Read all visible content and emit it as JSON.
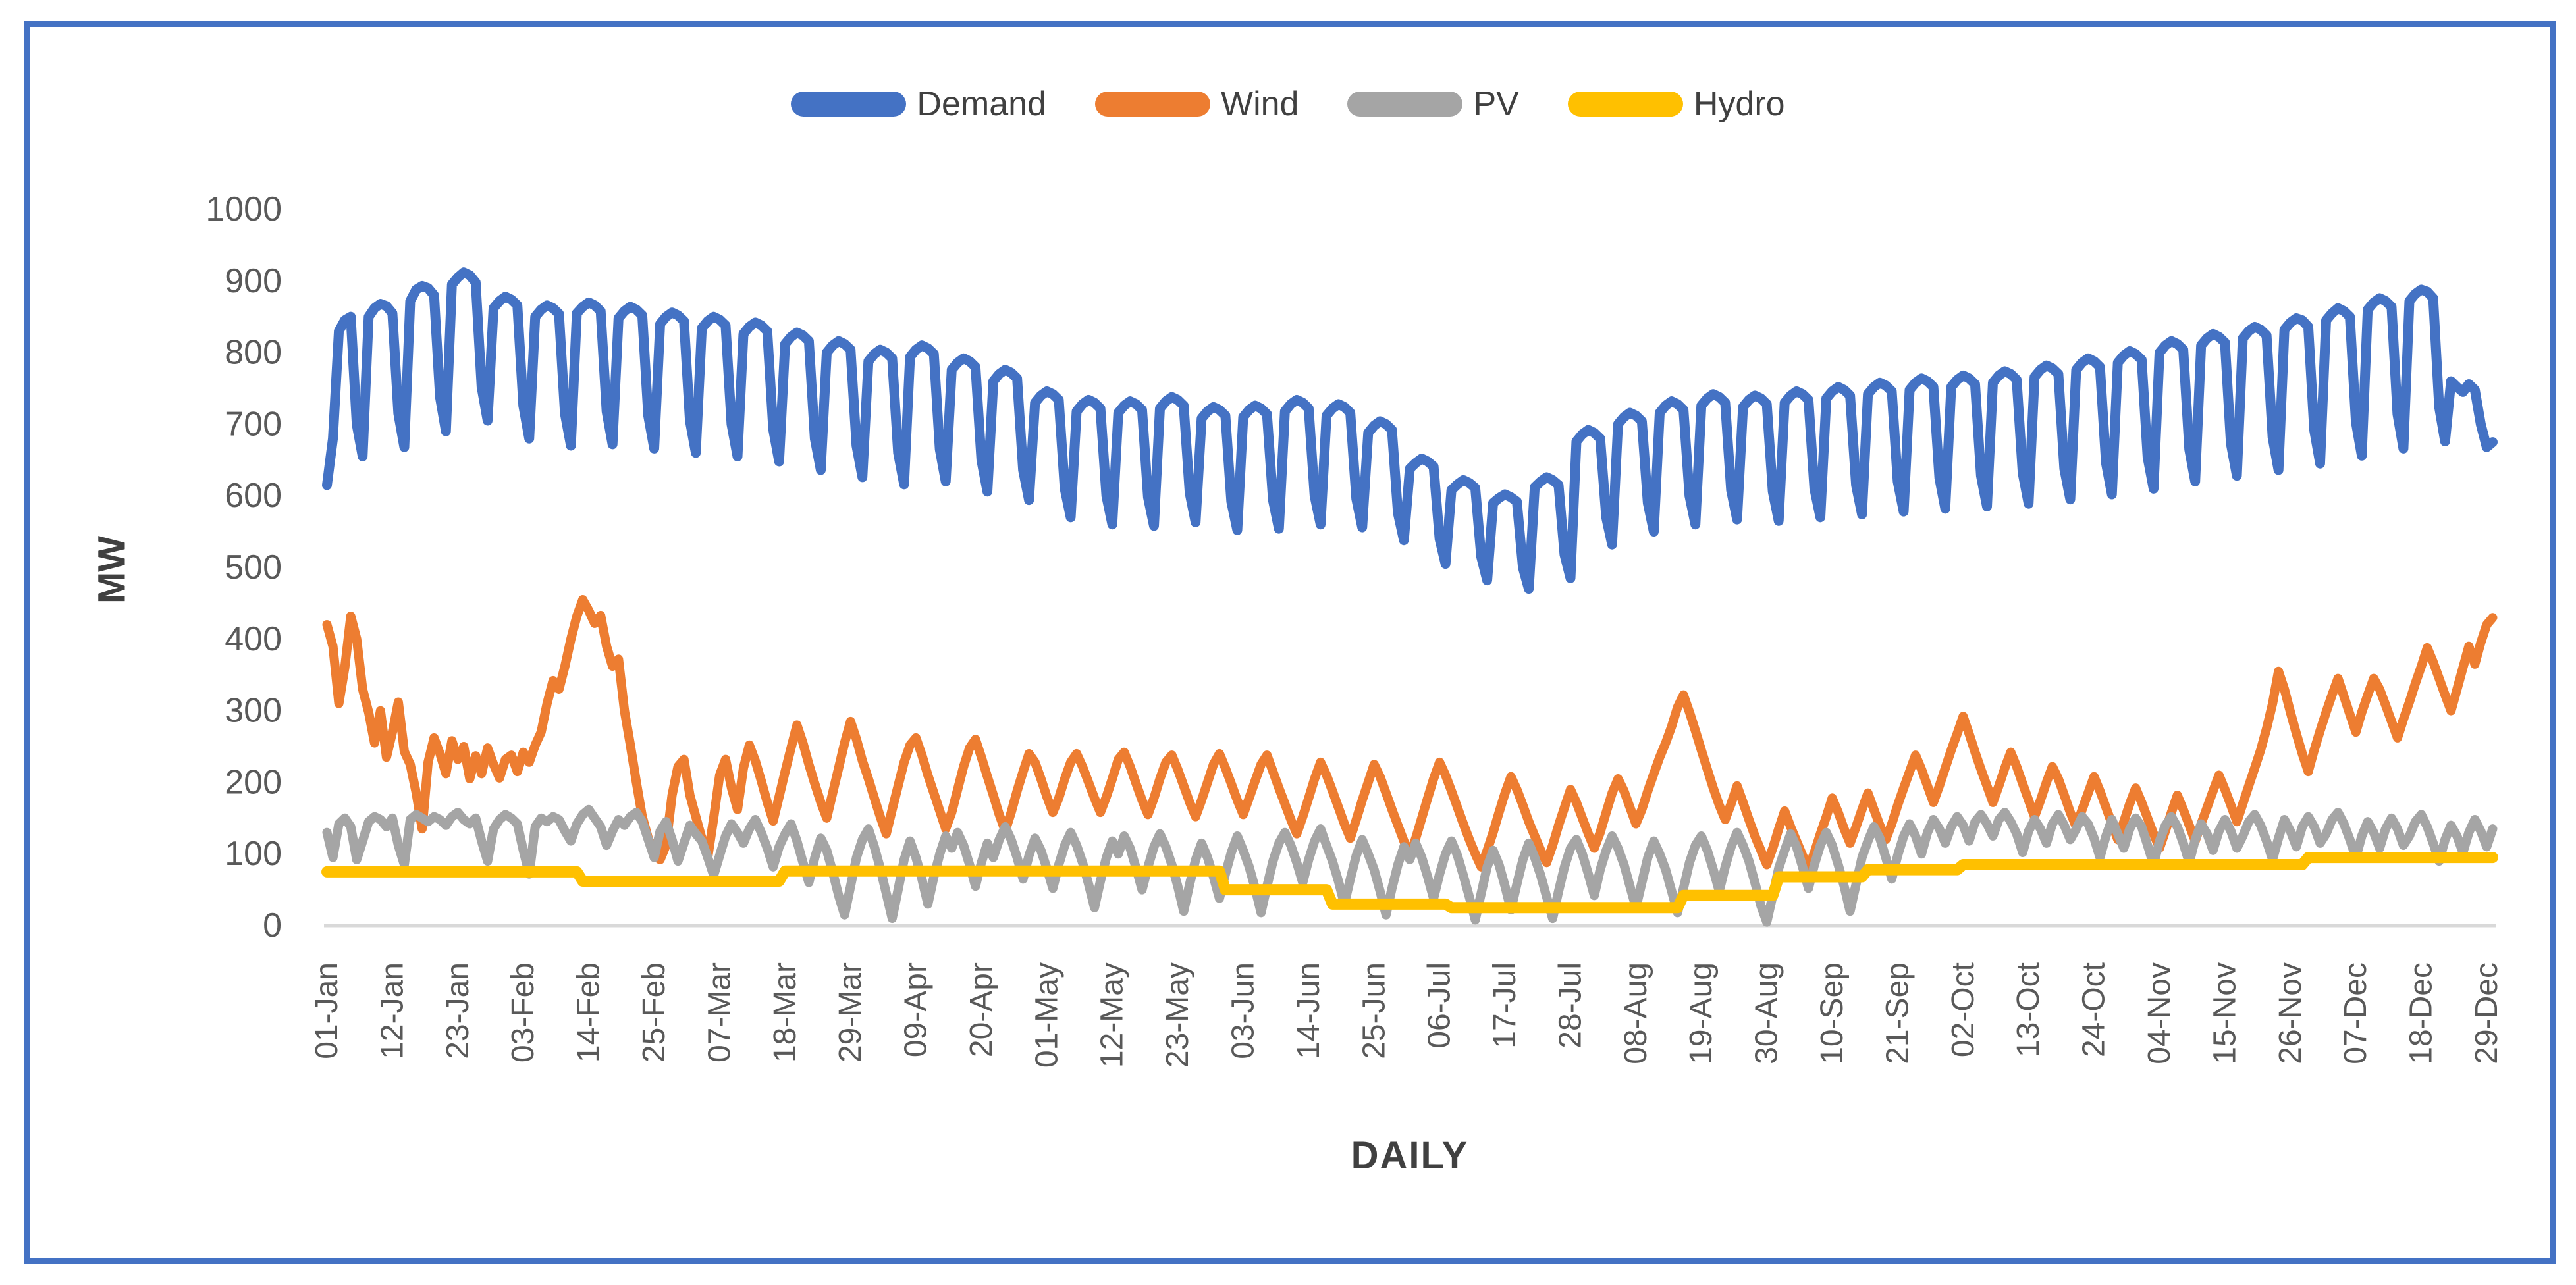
{
  "figure": {
    "border_color": "#4472C4",
    "background": "#FFFFFF"
  },
  "chart_data": {
    "type": "line",
    "title": "",
    "xlabel": "DAILY",
    "ylabel": "MW",
    "ylim": [
      0,
      1000
    ],
    "y_ticks": [
      0,
      100,
      200,
      300,
      400,
      500,
      600,
      700,
      800,
      900,
      1000
    ],
    "grid": false,
    "legend_position": "top",
    "days": 365,
    "x_tick_interval_days": 11,
    "x_tick_labels": [
      "01-Jan",
      "12-Jan",
      "23-Jan",
      "03-Feb",
      "14-Feb",
      "25-Feb",
      "07-Mar",
      "18-Mar",
      "29-Mar",
      "09-Apr",
      "20-Apr",
      "01-May",
      "12-May",
      "23-May",
      "03-Jun",
      "14-Jun",
      "25-Jun",
      "06-Jul",
      "17-Jul",
      "28-Jul",
      "08-Aug",
      "19-Aug",
      "30-Aug",
      "10-Sep",
      "21-Sep",
      "02-Oct",
      "13-Oct",
      "24-Oct",
      "04-Nov",
      "15-Nov",
      "26-Nov",
      "07-Dec",
      "18-Dec",
      "29-Dec"
    ],
    "axis_tick_color": "#595959",
    "axis_title_color": "#404040",
    "axis_line_color": "#D9D9D9",
    "series": [
      {
        "name": "Demand",
        "color": "#4472C4",
        "values": [
          615,
          680,
          830,
          845,
          850,
          700,
          655,
          850,
          862,
          868,
          865,
          855,
          715,
          668,
          872,
          888,
          893,
          890,
          880,
          738,
          690,
          895,
          905,
          912,
          908,
          898,
          752,
          705,
          862,
          872,
          878,
          874,
          866,
          726,
          680,
          850,
          860,
          866,
          862,
          854,
          715,
          670,
          855,
          864,
          870,
          866,
          858,
          718,
          672,
          848,
          858,
          864,
          860,
          852,
          712,
          666,
          840,
          850,
          856,
          852,
          844,
          705,
          660,
          834,
          844,
          850,
          846,
          838,
          700,
          655,
          826,
          836,
          842,
          838,
          830,
          693,
          648,
          812,
          822,
          828,
          824,
          816,
          680,
          636,
          800,
          810,
          816,
          812,
          804,
          670,
          626,
          788,
          798,
          804,
          800,
          792,
          660,
          616,
          794,
          804,
          810,
          806,
          798,
          665,
          620,
          776,
          786,
          792,
          788,
          780,
          650,
          606,
          760,
          770,
          776,
          772,
          764,
          636,
          594,
          730,
          740,
          746,
          742,
          734,
          610,
          570,
          718,
          728,
          734,
          730,
          722,
          600,
          560,
          716,
          726,
          732,
          728,
          720,
          598,
          558,
          722,
          732,
          738,
          734,
          726,
          604,
          563,
          708,
          718,
          724,
          720,
          712,
          592,
          552,
          710,
          720,
          726,
          722,
          714,
          594,
          554,
          718,
          728,
          734,
          730,
          722,
          600,
          560,
          712,
          722,
          728,
          724,
          716,
          596,
          556,
          688,
          698,
          704,
          700,
          692,
          576,
          538,
          638,
          646,
          652,
          648,
          641,
          540,
          505,
          608,
          616,
          622,
          618,
          611,
          515,
          482,
          590,
          597,
          602,
          598,
          592,
          500,
          470,
          612,
          620,
          626,
          622,
          615,
          518,
          485,
          676,
          686,
          692,
          688,
          680,
          570,
          532,
          700,
          710,
          716,
          712,
          704,
          590,
          550,
          716,
          726,
          732,
          728,
          720,
          600,
          560,
          726,
          736,
          742,
          738,
          730,
          608,
          567,
          724,
          734,
          740,
          736,
          728,
          606,
          565,
          730,
          740,
          746,
          742,
          734,
          610,
          570,
          736,
          746,
          752,
          748,
          740,
          615,
          574,
          742,
          752,
          758,
          754,
          746,
          620,
          578,
          748,
          758,
          764,
          760,
          752,
          625,
          582,
          752,
          762,
          768,
          764,
          756,
          628,
          585,
          758,
          768,
          774,
          770,
          762,
          632,
          589,
          766,
          776,
          782,
          778,
          770,
          638,
          595,
          776,
          786,
          792,
          788,
          780,
          646,
          602,
          786,
          796,
          802,
          798,
          790,
          654,
          610,
          800,
          810,
          816,
          812,
          804,
          665,
          620,
          810,
          820,
          826,
          822,
          814,
          673,
          628,
          820,
          830,
          836,
          832,
          824,
          682,
          636,
          832,
          842,
          848,
          845,
          836,
          692,
          645,
          845,
          855,
          862,
          858,
          850,
          703,
          656,
          860,
          870,
          876,
          872,
          864,
          714,
          666,
          872,
          882,
          888,
          885,
          876,
          724,
          676,
          760,
          752,
          745,
          756,
          748,
          700,
          668,
          675
        ]
      },
      {
        "name": "Wind",
        "color": "#ED7D31",
        "values": [
          420,
          390,
          310,
          360,
          432,
          400,
          330,
          298,
          255,
          300,
          235,
          270,
          312,
          243,
          225,
          185,
          135,
          228,
          262,
          240,
          212,
          258,
          232,
          250,
          205,
          237,
          212,
          248,
          225,
          206,
          232,
          238,
          215,
          242,
          228,
          252,
          270,
          310,
          342,
          330,
          362,
          400,
          432,
          455,
          440,
          422,
          433,
          390,
          362,
          372,
          300,
          252,
          200,
          152,
          122,
          98,
          92,
          112,
          182,
          222,
          232,
          182,
          152,
          122,
          95,
          150,
          210,
          232,
          192,
          162,
          220,
          252,
          230,
          202,
          172,
          146,
          180,
          215,
          248,
          280,
          255,
          225,
          198,
          172,
          150,
          185,
          220,
          255,
          285,
          260,
          230,
          205,
          178,
          152,
          128,
          162,
          195,
          228,
          252,
          262,
          238,
          210,
          185,
          160,
          135,
          158,
          190,
          222,
          248,
          260,
          235,
          208,
          182,
          155,
          132,
          158,
          188,
          215,
          240,
          228,
          205,
          180,
          158,
          178,
          205,
          228,
          240,
          222,
          200,
          178,
          158,
          180,
          205,
          232,
          242,
          222,
          198,
          175,
          155,
          178,
          205,
          228,
          238,
          218,
          195,
          172,
          152,
          175,
          200,
          225,
          240,
          220,
          198,
          175,
          155,
          178,
          202,
          225,
          238,
          215,
          192,
          170,
          148,
          128,
          152,
          178,
          205,
          228,
          210,
          188,
          165,
          142,
          122,
          148,
          175,
          200,
          225,
          208,
          185,
          162,
          140,
          118,
          98,
          122,
          150,
          178,
          205,
          228,
          210,
          188,
          165,
          142,
          120,
          100,
          82,
          105,
          130,
          158,
          185,
          208,
          190,
          168,
          145,
          125,
          105,
          88,
          112,
          140,
          165,
          190,
          172,
          150,
          128,
          108,
          130,
          158,
          185,
          205,
          188,
          165,
          142,
          162,
          188,
          212,
          235,
          255,
          278,
          305,
          322,
          298,
          272,
          245,
          218,
          192,
          168,
          148,
          170,
          195,
          172,
          148,
          125,
          105,
          85,
          108,
          135,
          160,
          138,
          118,
          98,
          80,
          102,
          128,
          152,
          178,
          158,
          135,
          115,
          138,
          162,
          185,
          162,
          140,
          120,
          142,
          168,
          192,
          215,
          238,
          218,
          195,
          172,
          195,
          220,
          245,
          268,
          292,
          268,
          242,
          218,
          195,
          172,
          195,
          220,
          242,
          222,
          198,
          175,
          152,
          175,
          200,
          222,
          205,
          182,
          158,
          138,
          162,
          185,
          208,
          188,
          165,
          142,
          120,
          145,
          170,
          192,
          172,
          150,
          128,
          108,
          132,
          158,
          182,
          162,
          140,
          118,
          142,
          165,
          188,
          210,
          190,
          168,
          145,
          170,
          195,
          220,
          245,
          275,
          310,
          355,
          330,
          298,
          268,
          240,
          215,
          245,
          272,
          298,
          322,
          345,
          320,
          295,
          270,
          298,
          322,
          345,
          330,
          308,
          285,
          262,
          288,
          312,
          338,
          362,
          388,
          368,
          345,
          322,
          300,
          330,
          360,
          390,
          365,
          395,
          420,
          430
        ]
      },
      {
        "name": "PV",
        "color": "#A5A5A5",
        "values": [
          130,
          95,
          142,
          150,
          138,
          92,
          118,
          145,
          152,
          148,
          138,
          150,
          112,
          85,
          148,
          155,
          150,
          145,
          152,
          148,
          140,
          152,
          158,
          148,
          142,
          150,
          118,
          90,
          135,
          148,
          155,
          150,
          142,
          105,
          72,
          138,
          150,
          145,
          152,
          148,
          132,
          118,
          142,
          155,
          162,
          150,
          138,
          112,
          132,
          148,
          140,
          152,
          158,
          145,
          120,
          95,
          132,
          145,
          120,
          90,
          115,
          140,
          128,
          118,
          95,
          70,
          98,
          125,
          142,
          130,
          115,
          135,
          148,
          130,
          108,
          82,
          110,
          128,
          142,
          118,
          88,
          60,
          95,
          122,
          105,
          75,
          42,
          15,
          55,
          95,
          120,
          135,
          110,
          80,
          45,
          10,
          50,
          92,
          118,
          95,
          65,
          30,
          68,
          100,
          125,
          108,
          130,
          112,
          85,
          55,
          88,
          115,
          95,
          120,
          138,
          120,
          95,
          65,
          98,
          122,
          105,
          80,
          52,
          85,
          112,
          130,
          112,
          88,
          58,
          25,
          62,
          95,
          118,
          100,
          125,
          108,
          80,
          50,
          82,
          110,
          128,
          110,
          85,
          55,
          20,
          58,
          92,
          115,
          95,
          68,
          38,
          72,
          102,
          125,
          105,
          82,
          52,
          18,
          55,
          90,
          115,
          130,
          112,
          88,
          60,
          92,
          118,
          135,
          112,
          90,
          62,
          30,
          65,
          98,
          120,
          100,
          78,
          48,
          15,
          52,
          85,
          110,
          92,
          115,
          95,
          68,
          38,
          72,
          100,
          118,
          98,
          70,
          40,
          8,
          45,
          82,
          105,
          85,
          55,
          22,
          58,
          92,
          115,
          95,
          70,
          40,
          10,
          48,
          82,
          108,
          120,
          100,
          72,
          42,
          78,
          105,
          125,
          108,
          85,
          55,
          25,
          60,
          95,
          118,
          100,
          78,
          48,
          18,
          52,
          88,
          112,
          125,
          105,
          78,
          48,
          82,
          110,
          130,
          112,
          90,
          60,
          28,
          5,
          42,
          80,
          105,
          128,
          110,
          82,
          52,
          85,
          112,
          130,
          112,
          85,
          55,
          20,
          58,
          95,
          118,
          138,
          122,
          95,
          65,
          98,
          125,
          142,
          125,
          100,
          130,
          148,
          135,
          115,
          138,
          152,
          140,
          118,
          145,
          155,
          142,
          125,
          148,
          158,
          145,
          128,
          102,
          132,
          148,
          135,
          115,
          142,
          155,
          140,
          120,
          135,
          152,
          142,
          122,
          95,
          125,
          148,
          128,
          108,
          135,
          150,
          138,
          112,
          85,
          118,
          140,
          152,
          138,
          115,
          88,
          120,
          142,
          128,
          105,
          132,
          148,
          132,
          108,
          125,
          145,
          155,
          140,
          118,
          92,
          122,
          148,
          132,
          110,
          138,
          152,
          138,
          115,
          128,
          148,
          158,
          142,
          120,
          95,
          125,
          145,
          130,
          108,
          135,
          150,
          135,
          112,
          125,
          145,
          155,
          138,
          115,
          90,
          120,
          140,
          125,
          102,
          130,
          148,
          132,
          110,
          135
        ]
      },
      {
        "name": "Hydro",
        "color": "#FFC000",
        "step_segments": [
          [
            43,
            75
          ],
          [
            34,
            62
          ],
          [
            74,
            76
          ],
          [
            18,
            50
          ],
          [
            20,
            30
          ],
          [
            39,
            25
          ],
          [
            16,
            42
          ],
          [
            15,
            68
          ],
          [
            16,
            78
          ],
          [
            58,
            85
          ],
          [
            32,
            95
          ]
        ]
      }
    ]
  }
}
